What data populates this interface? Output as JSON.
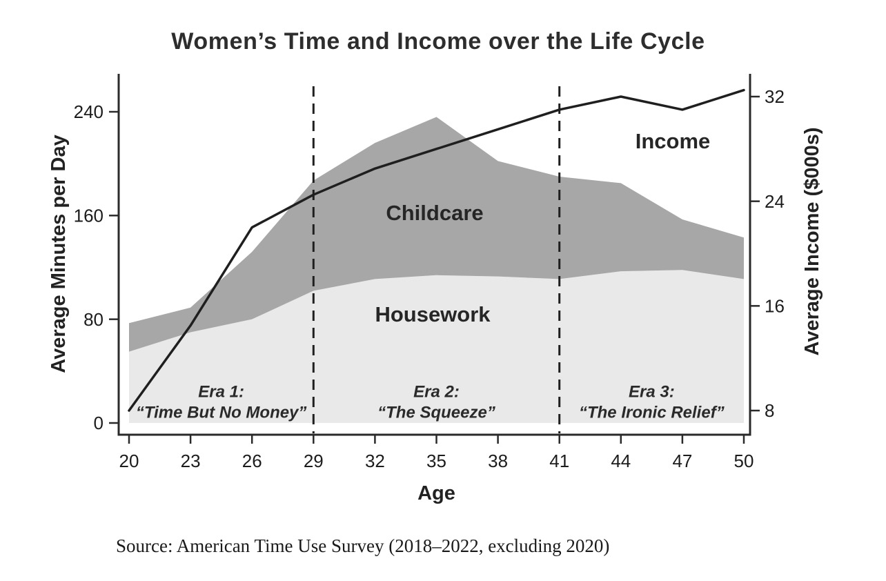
{
  "title": "Women’s Time and Income over the Life Cycle",
  "source_note": "Source: American Time Use Survey (2018–2022, excluding 2020)",
  "chart_data": {
    "type": "area",
    "x": [
      20,
      23,
      26,
      29,
      32,
      35,
      38,
      41,
      44,
      47,
      50
    ],
    "xlabel": "Age",
    "ylabel_left": "Average Minutes per Day",
    "ylabel_right": "Average Income ($000s)",
    "y_left_ticks": [
      0,
      80,
      160,
      240
    ],
    "y_right_ticks": [
      8,
      16,
      24,
      32
    ],
    "ylim_left": [
      0,
      269
    ],
    "ylim_right": [
      8,
      33
    ],
    "grid": false,
    "legend": "labels drawn inside plot",
    "series": [
      {
        "name": "Housework",
        "type": "area",
        "axis": "left",
        "stack_base": true,
        "color": "#e9e9e9",
        "values": [
          55,
          70,
          80,
          102,
          111,
          114,
          113,
          111,
          117,
          118,
          111
        ]
      },
      {
        "name": "Childcare",
        "type": "area",
        "axis": "left",
        "stacked_on": "Housework",
        "color": "#a7a7a7",
        "values": [
          22,
          19,
          52,
          85,
          105,
          122,
          89,
          79,
          68,
          39,
          32
        ]
      },
      {
        "name": "Income",
        "type": "line",
        "axis": "right",
        "color": "#1f1f1f",
        "values": [
          8,
          14.5,
          22,
          24.5,
          26.5,
          28,
          29.5,
          31,
          32,
          31,
          32.5
        ]
      }
    ],
    "era_dividers_x": [
      29,
      41
    ],
    "eras": [
      {
        "line1": "Era 1:",
        "line2": "“Time But No Money”"
      },
      {
        "line1": "Era 2:",
        "line2": "“The Squeeze”"
      },
      {
        "line1": "Era 3:",
        "line2": "“The Ironic Relief”"
      }
    ],
    "inplot_labels": {
      "childcare": "Childcare",
      "housework": "Housework",
      "income": "Income"
    }
  }
}
